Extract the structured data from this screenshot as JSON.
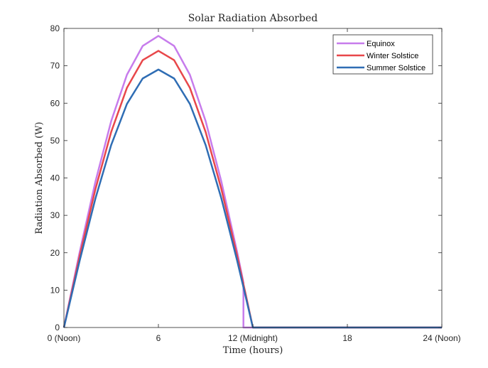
{
  "chart_data": {
    "type": "line",
    "title": "Solar Radiation Absorbed",
    "xlabel": "Time (hours)",
    "ylabel": "Radiation Absorbed (W)",
    "xlim": [
      0,
      24
    ],
    "ylim": [
      0,
      80
    ],
    "x_ticks": [
      {
        "value": 0,
        "label": "0 (Noon)"
      },
      {
        "value": 6,
        "label": "6"
      },
      {
        "value": 12,
        "label": "12 (Midnight)"
      },
      {
        "value": 18,
        "label": "18"
      },
      {
        "value": 24,
        "label": "24 (Noon)"
      }
    ],
    "y_ticks": [
      0,
      10,
      20,
      30,
      40,
      50,
      60,
      70,
      80
    ],
    "grid": false,
    "legend_position": "top-right",
    "series": [
      {
        "name": "Equinox",
        "color": "#c77cec",
        "peak": 78,
        "x": [
          0,
          1,
          2,
          3,
          4,
          5,
          6,
          7,
          8,
          9,
          10,
          11,
          11.33,
          11.4,
          11.4,
          24
        ],
        "y": [
          0,
          20.2,
          39.0,
          55.2,
          67.6,
          75.3,
          78.0,
          75.3,
          67.6,
          55.2,
          39.0,
          20.2,
          13.5,
          12.0,
          0,
          0
        ]
      },
      {
        "name": "Winter Solstice",
        "color": "#e8474a",
        "peak": 74,
        "x": [
          0,
          1,
          2,
          3,
          4,
          5,
          6,
          7,
          8,
          9,
          10,
          11,
          11.5,
          12.0,
          24
        ],
        "y": [
          0,
          19.2,
          37.0,
          52.3,
          64.1,
          71.5,
          74.0,
          71.5,
          64.1,
          52.3,
          37.0,
          19.2,
          9.7,
          0,
          0
        ]
      },
      {
        "name": "Summer Solstice",
        "color": "#2f6db4",
        "peak": 69,
        "x": [
          0,
          1,
          2,
          3,
          4,
          5,
          6,
          7,
          8,
          9,
          10,
          11,
          11.5,
          12.0,
          24
        ],
        "y": [
          0,
          17.9,
          34.5,
          48.8,
          59.8,
          66.6,
          69.0,
          66.6,
          59.8,
          48.8,
          34.5,
          17.9,
          9.0,
          0,
          0
        ]
      }
    ]
  }
}
